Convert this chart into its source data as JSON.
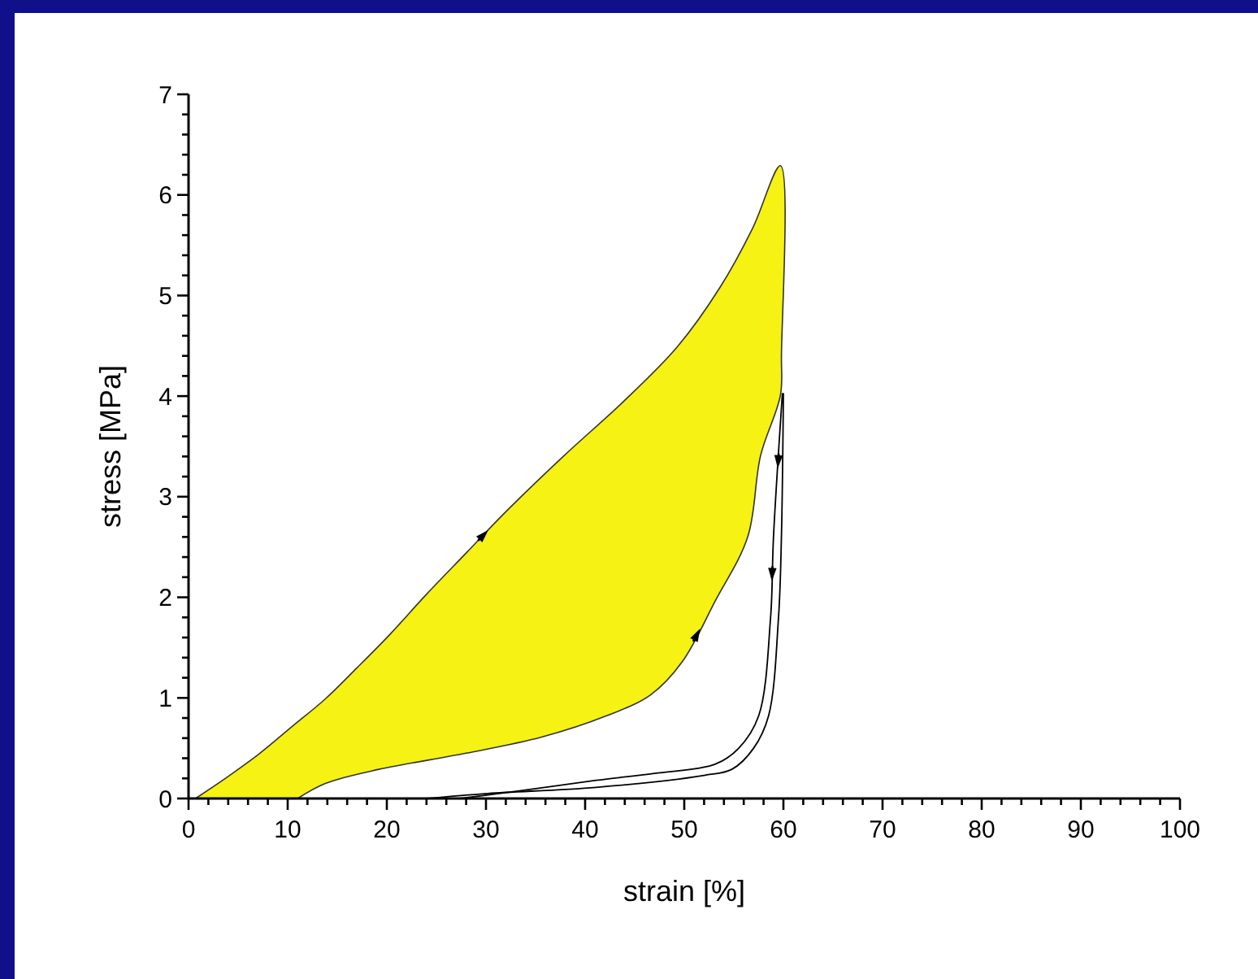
{
  "chart_data": {
    "type": "line",
    "xlabel": "strain [%]",
    "ylabel": "stress [MPa]",
    "xlim": [
      0,
      100
    ],
    "ylim": [
      0,
      7
    ],
    "xticks": [
      0,
      {
        "value": 2,
        "label": null
      },
      {
        "value": 4,
        "label": null
      },
      {
        "value": 6,
        "label": null
      },
      {
        "value": 8,
        "label": null
      },
      10,
      {
        "value": 12,
        "label": null
      },
      {
        "value": 14,
        "label": null
      },
      {
        "value": 16,
        "label": null
      },
      {
        "value": 18,
        "label": null
      },
      20,
      {
        "value": 22,
        "label": null
      },
      {
        "value": 24,
        "label": null
      },
      {
        "value": 26,
        "label": null
      },
      {
        "value": 28,
        "label": null
      },
      30,
      {
        "value": 32,
        "label": null
      },
      {
        "value": 34,
        "label": null
      },
      {
        "value": 36,
        "label": null
      },
      {
        "value": 38,
        "label": null
      },
      40,
      {
        "value": 42,
        "label": null
      },
      {
        "value": 44,
        "label": null
      },
      {
        "value": 46,
        "label": null
      },
      {
        "value": 48,
        "label": null
      },
      50,
      {
        "value": 52,
        "label": null
      },
      {
        "value": 54,
        "label": null
      },
      {
        "value": 56,
        "label": null
      },
      {
        "value": 58,
        "label": null
      },
      60,
      {
        "value": 62,
        "label": null
      },
      {
        "value": 64,
        "label": null
      },
      {
        "value": 66,
        "label": null
      },
      {
        "value": 68,
        "label": null
      },
      70,
      {
        "value": 72,
        "label": null
      },
      {
        "value": 74,
        "label": null
      },
      {
        "value": 76,
        "label": null
      },
      {
        "value": 78,
        "label": null
      },
      80,
      {
        "value": 82,
        "label": null
      },
      {
        "value": 84,
        "label": null
      },
      {
        "value": 86,
        "label": null
      },
      {
        "value": 88,
        "label": null
      },
      90,
      {
        "value": 92,
        "label": null
      },
      {
        "value": 94,
        "label": null
      },
      {
        "value": 96,
        "label": null
      },
      {
        "value": 98,
        "label": null
      },
      100
    ],
    "yticks": [
      0,
      {
        "value": 0.2,
        "label": null
      },
      {
        "value": 0.4,
        "label": null
      },
      {
        "value": 0.6,
        "label": null
      },
      {
        "value": 0.8,
        "label": null
      },
      1,
      {
        "value": 1.2,
        "label": null
      },
      {
        "value": 1.4,
        "label": null
      },
      {
        "value": 1.6,
        "label": null
      },
      {
        "value": 1.8,
        "label": null
      },
      2,
      {
        "value": 2.2,
        "label": null
      },
      {
        "value": 2.4,
        "label": null
      },
      {
        "value": 2.6,
        "label": null
      },
      {
        "value": 2.8,
        "label": null
      },
      3,
      {
        "value": 3.2,
        "label": null
      },
      {
        "value": 3.4,
        "label": null
      },
      {
        "value": 3.6,
        "label": null
      },
      {
        "value": 3.8,
        "label": null
      },
      4,
      {
        "value": 4.2,
        "label": null
      },
      {
        "value": 4.4,
        "label": null
      },
      {
        "value": 4.6,
        "label": null
      },
      {
        "value": 4.8,
        "label": null
      },
      5,
      {
        "value": 5.2,
        "label": null
      },
      {
        "value": 5.4,
        "label": null
      },
      {
        "value": 5.6,
        "label": null
      },
      {
        "value": 5.8,
        "label": null
      },
      6,
      {
        "value": 6.2,
        "label": null
      },
      {
        "value": 6.4,
        "label": null
      },
      {
        "value": 6.6,
        "label": null
      },
      {
        "value": 6.8,
        "label": null
      },
      7
    ],
    "grid": false,
    "marker": "none",
    "line_style": "solid",
    "series": [
      {
        "type": "area",
        "color": "#f5f214",
        "x": [
          0.7,
          4,
          7.2,
          10.5,
          13.8,
          17,
          20.3,
          24,
          28,
          32,
          37.9,
          43.8,
          49.3,
          53.6,
          56.9,
          59.7,
          59.8,
          59.7,
          57.7,
          56.4,
          53.1,
          49.8,
          46.6,
          42.1,
          35.6,
          28,
          19.2,
          13.8,
          11
        ],
        "values": [
          0,
          0.22,
          0.45,
          0.72,
          0.99,
          1.3,
          1.63,
          2.03,
          2.44,
          2.85,
          3.41,
          3.94,
          4.49,
          5.08,
          5.67,
          6.29,
          4.4,
          4.01,
          3.41,
          2.6,
          1.96,
          1.36,
          1.03,
          0.82,
          0.61,
          0.45,
          0.29,
          0.15,
          0
        ]
      },
      {
        "color": "#000000",
        "x": [
          59.9,
          59.0,
          58.7,
          57.5,
          55.5,
          53.1,
          47,
          41.1,
          32.9,
          27.4
        ],
        "values": [
          4.03,
          2.6,
          1.79,
          0.82,
          0.5,
          0.34,
          0.25,
          0.18,
          0.07,
          0
        ]
      },
      {
        "color": "#000000",
        "x": [
          60,
          59.8,
          59.5,
          58.5,
          57,
          54.8,
          52,
          41.1,
          30.2,
          24
        ],
        "values": [
          4.03,
          2.6,
          1.79,
          0.82,
          0.5,
          0.29,
          0.23,
          0.11,
          0.05,
          0
        ]
      }
    ]
  }
}
